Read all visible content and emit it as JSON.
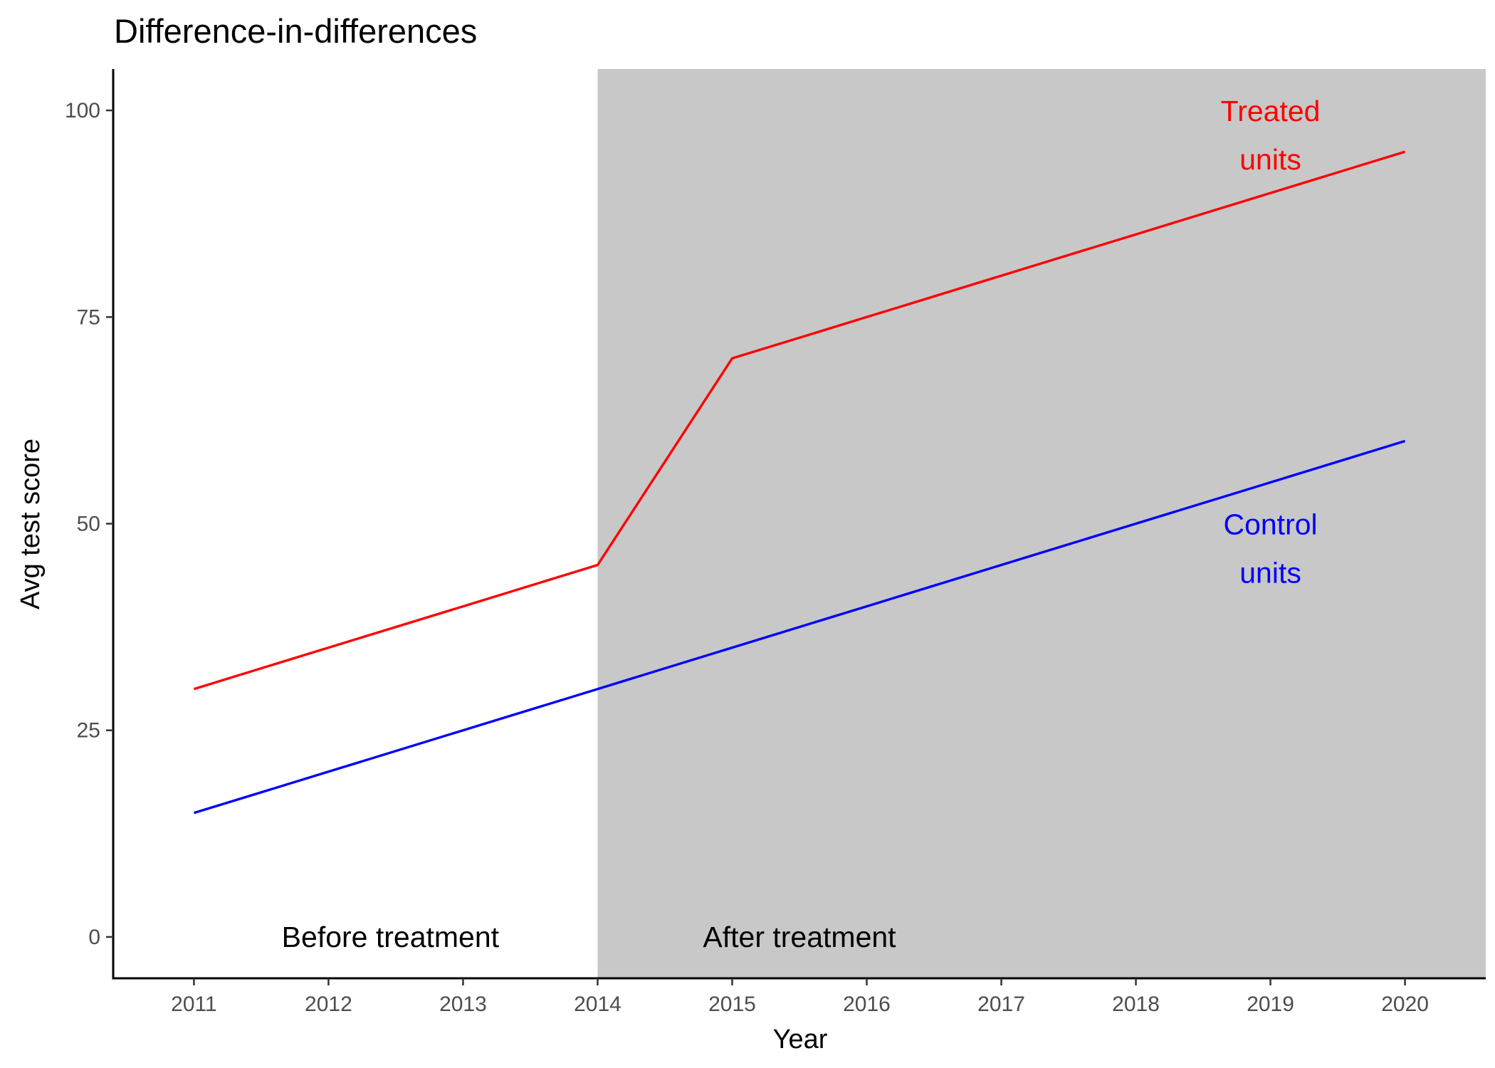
{
  "chart_data": {
    "type": "line",
    "title": "Difference-in-differences",
    "xlabel": "Year",
    "ylabel": "Avg test score",
    "x": [
      2011,
      2012,
      2013,
      2014,
      2015,
      2016,
      2017,
      2018,
      2019,
      2020
    ],
    "xlim": [
      2010.4,
      2020.6
    ],
    "ylim": [
      -5,
      105
    ],
    "x_ticks": [
      "2011",
      "2012",
      "2013",
      "2014",
      "2015",
      "2016",
      "2017",
      "2018",
      "2019",
      "2020"
    ],
    "y_ticks": [
      0,
      25,
      50,
      75,
      100
    ],
    "grid": false,
    "legend": "none",
    "shaded_region": {
      "from": 2014,
      "to": 2020.6,
      "color": "#c8c8c8"
    },
    "series": [
      {
        "key": "treated",
        "color": "#ff0000",
        "values": [
          30,
          35,
          40,
          45,
          70,
          75,
          80,
          85,
          90,
          95
        ]
      },
      {
        "key": "control",
        "color": "#0000ff",
        "values": [
          15,
          20,
          25,
          30,
          35,
          40,
          45,
          50,
          55,
          60
        ]
      }
    ],
    "annotations": [
      {
        "key": "treated-label",
        "lines": [
          "Treated",
          "units"
        ],
        "x": 2019,
        "y": 97,
        "color": "#ff0000"
      },
      {
        "key": "control-label",
        "lines": [
          "Control",
          "units"
        ],
        "x": 2019,
        "y": 47,
        "color": "#0000ff"
      },
      {
        "key": "before-label",
        "lines": [
          "Before treatment"
        ],
        "x": 2012.46,
        "y": 0,
        "color": "#000000"
      },
      {
        "key": "after-label",
        "lines": [
          "After treatment"
        ],
        "x": 2015.5,
        "y": 0,
        "color": "#000000"
      }
    ]
  }
}
